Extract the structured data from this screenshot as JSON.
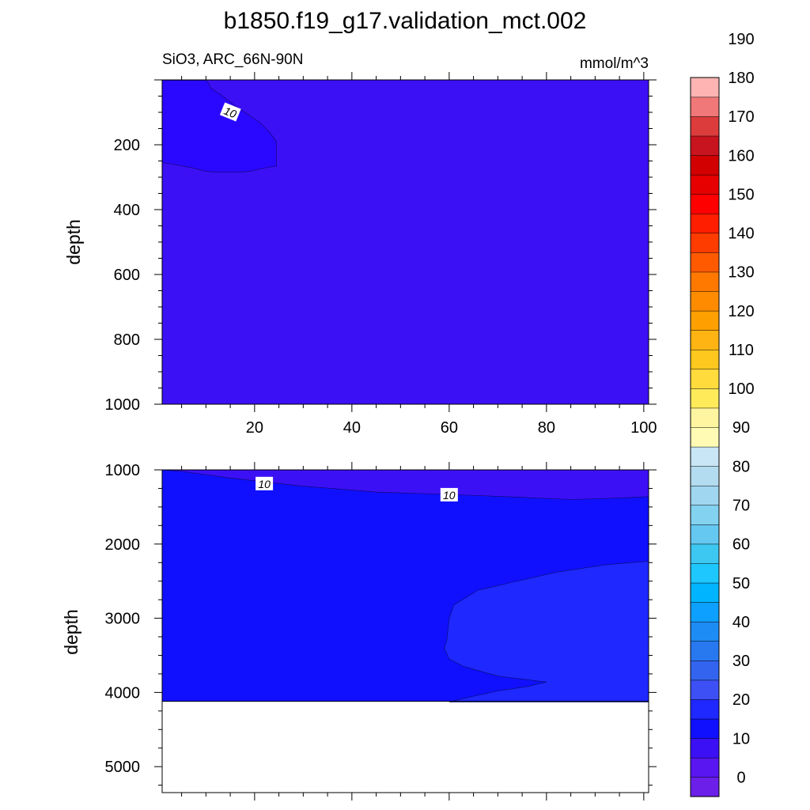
{
  "chart_data": {
    "type": "heatmap",
    "title": "b1850.f19_g17.validation_mct.002",
    "subtitle_left": "SiO3, ARC_66N-90N",
    "units": "mmol/m^3",
    "panels": [
      {
        "ylabel": "depth",
        "xlim": [
          1,
          101
        ],
        "ylim": [
          1000,
          0
        ],
        "xticks": [
          "20",
          "40",
          "60",
          "80",
          "100"
        ],
        "yticks": [
          "200",
          "400",
          "600",
          "800",
          "1000"
        ],
        "background_fill": "#3c10f5",
        "regions": [
          {
            "fill": "#2a08ff",
            "points": [
              [
                1,
                1
              ],
              [
                10,
                1
              ],
              [
                10.5,
                10
              ],
              [
                11,
                25
              ],
              [
                13,
                45
              ],
              [
                16,
                80
              ],
              [
                19,
                110
              ],
              [
                21,
                130
              ],
              [
                23,
                160
              ],
              [
                24.5,
                190
              ],
              [
                24.5,
                200
              ],
              [
                24.5,
                265
              ],
              [
                22,
                272
              ],
              [
                19,
                282
              ],
              [
                17,
                285
              ],
              [
                12,
                285
              ],
              [
                10,
                282
              ],
              [
                8,
                274
              ],
              [
                6,
                268
              ],
              [
                4,
                262
              ],
              [
                2,
                257
              ],
              [
                1,
                255
              ]
            ]
          }
        ],
        "contour_labels": [
          {
            "text": "10",
            "x": 15,
            "y": 100
          }
        ]
      },
      {
        "ylabel": "depth",
        "xlim": [
          1,
          101
        ],
        "ylim": [
          5350,
          1000
        ],
        "xticks": [],
        "yticks": [
          "1000",
          "2000",
          "3000",
          "4000",
          "5000"
        ],
        "background_fill": "#1010ff",
        "bottom_boundary_depth": 4120,
        "regions": [
          {
            "fill": "#3c10f5",
            "points": [
              [
                1,
                1000
              ],
              [
                5,
                1020
              ],
              [
                15,
                1110
              ],
              [
                30,
                1220
              ],
              [
                45,
                1300
              ],
              [
                60,
                1330
              ],
              [
                75,
                1370
              ],
              [
                85,
                1400
              ],
              [
                95,
                1380
              ],
              [
                101,
                1360
              ],
              [
                101,
                1000
              ]
            ]
          },
          {
            "fill": "#1e28ff",
            "points": [
              [
                101,
                2230
              ],
              [
                92,
                2280
              ],
              [
                82,
                2380
              ],
              [
                72,
                2530
              ],
              [
                66,
                2620
              ],
              [
                61,
                2820
              ],
              [
                60,
                3000
              ],
              [
                59.5,
                3300
              ],
              [
                59,
                3400
              ],
              [
                60,
                3550
              ],
              [
                63,
                3650
              ],
              [
                70,
                3780
              ],
              [
                80,
                3860
              ],
              [
                76,
                3920
              ],
              [
                70,
                3980
              ],
              [
                63,
                4080
              ],
              [
                60,
                4130
              ],
              [
                101,
                4130
              ]
            ]
          }
        ],
        "contour_labels": [
          {
            "text": "10",
            "x": 22,
            "y": 1190
          },
          {
            "text": "10",
            "x": 60,
            "y": 1340
          }
        ]
      }
    ],
    "colorbar": {
      "labels": [
        "0",
        "10",
        "20",
        "30",
        "40",
        "50",
        "60",
        "70",
        "80",
        "90",
        "100",
        "110",
        "120",
        "130",
        "140",
        "150",
        "160",
        "170",
        "180",
        "190"
      ],
      "colors": [
        "#6c1fe8",
        "#5a16f0",
        "#3c10f5",
        "#1010ff",
        "#1e28ff",
        "#3c50f5",
        "#3264f0",
        "#2878f0",
        "#1e8cf5",
        "#0ea0ff",
        "#00b4ff",
        "#1ec8ff",
        "#3cc8f0",
        "#64c8f0",
        "#82d2f0",
        "#a0d6f0",
        "#b4dcf0",
        "#c8e6f5",
        "#fffbb4",
        "#fff5a0",
        "#ffeb5a",
        "#ffdc3c",
        "#ffc81e",
        "#ffb414",
        "#ffa000",
        "#ff8c00",
        "#ff7800",
        "#ff5a00",
        "#ff3c00",
        "#ff1e00",
        "#ff0000",
        "#e60000",
        "#d20000",
        "#c8141e",
        "#dc3c3c",
        "#f07878",
        "#ffb4b4"
      ]
    }
  }
}
